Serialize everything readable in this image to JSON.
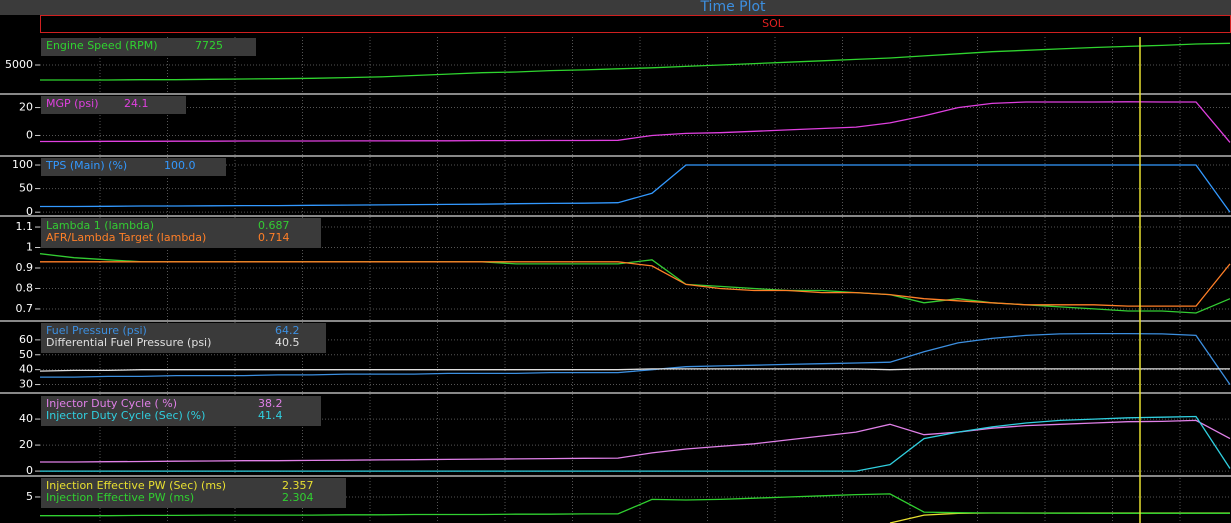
{
  "window_title": "Time Plot",
  "mode_label": "SOL",
  "chart_data": [
    {
      "type": "line",
      "ylim": [
        1000,
        9000
      ],
      "yticks": [
        5000
      ],
      "series": [
        {
          "name": "Engine Speed (RPM)",
          "readout": "7725",
          "color": "#2fd42f",
          "values": [
            2850,
            2850,
            2850,
            2900,
            2900,
            2950,
            3000,
            3050,
            3100,
            3200,
            3300,
            3500,
            3700,
            3900,
            4000,
            4200,
            4300,
            4450,
            4600,
            4800,
            5000,
            5200,
            5400,
            5600,
            5800,
            6000,
            6300,
            6600,
            6900,
            7100,
            7300,
            7500,
            7650,
            7800,
            8000,
            8100
          ]
        }
      ]
    },
    {
      "type": "line",
      "ylim": [
        -14,
        29
      ],
      "yticks": [
        20,
        0
      ],
      "series": [
        {
          "name": "MGP (psi)",
          "readout": "24.1",
          "color": "#e040e0",
          "values": [
            -4.3,
            -4.3,
            -4.2,
            -4.2,
            -4.1,
            -4.1,
            -4,
            -4,
            -4,
            -3.9,
            -3.9,
            -3.8,
            -3.8,
            -3.7,
            -3.7,
            -3.6,
            -3.6,
            -3.5,
            0,
            1.5,
            2,
            3,
            4,
            5,
            6,
            9,
            14,
            20,
            23,
            24,
            24,
            24,
            24.1,
            24,
            24,
            -5
          ]
        }
      ]
    },
    {
      "type": "line",
      "ylim": [
        -6,
        117
      ],
      "yticks": [
        100,
        50,
        0
      ],
      "series": [
        {
          "name": "TPS (Main) (%)",
          "readout": "100.0",
          "color": "#3399ff",
          "values": [
            12,
            12,
            12.5,
            13,
            13,
            13.5,
            14,
            14,
            14.5,
            15,
            15.5,
            16,
            16.5,
            17,
            18,
            18.5,
            19,
            20,
            40,
            100,
            100,
            100,
            100,
            100,
            100,
            100,
            100,
            100,
            100,
            100,
            100,
            100,
            100,
            100,
            100,
            0
          ]
        }
      ]
    },
    {
      "type": "line",
      "ylim": [
        0.646,
        1.149
      ],
      "yticks": [
        1.1,
        1,
        0.9,
        0.8,
        0.7
      ],
      "series": [
        {
          "name": "Lambda 1 (lambda)",
          "readout": "0.687",
          "color": "#33cc33",
          "values": [
            0.97,
            0.95,
            0.94,
            0.93,
            0.93,
            0.93,
            0.93,
            0.93,
            0.93,
            0.93,
            0.93,
            0.93,
            0.93,
            0.93,
            0.92,
            0.92,
            0.92,
            0.92,
            0.94,
            0.82,
            0.81,
            0.8,
            0.79,
            0.79,
            0.78,
            0.77,
            0.73,
            0.75,
            0.73,
            0.72,
            0.71,
            0.7,
            0.69,
            0.69,
            0.68,
            0.75
          ]
        },
        {
          "name": "AFR/Lambda Target (lambda)",
          "readout": "0.714",
          "color": "#ff7f27",
          "values": [
            0.93,
            0.93,
            0.93,
            0.93,
            0.93,
            0.93,
            0.93,
            0.93,
            0.93,
            0.93,
            0.93,
            0.93,
            0.93,
            0.93,
            0.93,
            0.93,
            0.93,
            0.93,
            0.91,
            0.82,
            0.8,
            0.79,
            0.79,
            0.78,
            0.78,
            0.77,
            0.75,
            0.74,
            0.73,
            0.72,
            0.72,
            0.72,
            0.714,
            0.714,
            0.714,
            0.92
          ]
        }
      ]
    },
    {
      "type": "line",
      "ylim": [
        25,
        72
      ],
      "yticks": [
        60,
        50,
        40,
        30
      ],
      "series": [
        {
          "name": "Fuel Pressure (psi)",
          "readout": "64.2",
          "color": "#3c8fe0",
          "values": [
            35,
            35,
            35.5,
            35.5,
            36,
            36,
            36,
            36.5,
            36.5,
            37,
            37,
            37,
            37.5,
            37.5,
            37.5,
            38,
            38,
            38,
            40,
            42,
            42.5,
            43,
            43.5,
            44,
            44.5,
            45,
            52,
            58,
            61,
            63,
            64,
            64.2,
            64.2,
            64,
            63,
            30
          ]
        },
        {
          "name": "Differential Fuel Pressure (psi)",
          "readout": "40.5",
          "color": "#e0e0e0",
          "values": [
            39,
            39.5,
            39.5,
            40,
            40,
            40,
            40,
            40,
            40,
            40,
            40,
            40,
            40,
            40,
            40,
            40,
            40,
            40,
            40.5,
            40.5,
            40.5,
            40.5,
            40.5,
            40.5,
            40.5,
            40,
            40.5,
            40.5,
            40.5,
            40.5,
            40.5,
            40.5,
            40.5,
            40.5,
            40.5,
            40.5
          ]
        }
      ]
    },
    {
      "type": "line",
      "ylim": [
        -3,
        58.5
      ],
      "yticks": [
        40,
        20,
        0
      ],
      "series": [
        {
          "name": "Injector Duty Cycle ( %)",
          "readout": "38.2",
          "color": "#e080e8",
          "values": [
            7,
            7,
            7.2,
            7.4,
            7.6,
            7.8,
            8,
            8,
            8.2,
            8.4,
            8.6,
            8.8,
            9,
            9.2,
            9.4,
            9.6,
            9.8,
            10,
            14,
            17,
            19,
            21,
            24,
            27,
            30,
            36,
            28,
            30,
            33,
            35,
            36,
            37,
            38,
            38.2,
            39,
            25
          ]
        },
        {
          "name": "Injector Duty Cycle (Sec) (%)",
          "readout": "41.4",
          "color": "#30d0e0",
          "values": [
            0,
            0,
            0,
            0,
            0,
            0,
            0,
            0,
            0,
            0,
            0,
            0,
            0,
            0,
            0,
            0,
            0,
            0,
            0,
            0,
            0,
            0,
            0,
            0,
            0,
            5,
            25,
            30,
            34,
            37,
            39,
            40,
            41,
            41.4,
            42,
            2
          ]
        }
      ]
    },
    {
      "type": "line",
      "ylim": [
        0.7,
        8.3
      ],
      "yticks": [
        5
      ],
      "series": [
        {
          "name": "Injection Effective PW (Sec) (ms)",
          "readout": "2.357",
          "color": "#e8e030",
          "values": [
            null,
            null,
            null,
            null,
            null,
            null,
            null,
            null,
            null,
            null,
            null,
            null,
            null,
            null,
            null,
            null,
            null,
            null,
            null,
            null,
            null,
            null,
            null,
            null,
            null,
            0.7,
            2,
            2.3,
            2.36,
            2.36,
            2.36,
            2.36,
            2.36,
            2.36,
            2.36,
            2.35
          ]
        },
        {
          "name": "Injection Effective PW (ms)",
          "readout": "2.304",
          "color": "#30d030",
          "values": [
            1.9,
            1.9,
            1.9,
            1.95,
            1.95,
            2,
            2,
            2,
            2,
            2.05,
            2.05,
            2.1,
            2.1,
            2.1,
            2.15,
            2.15,
            2.2,
            2.2,
            4.6,
            4.5,
            4.6,
            4.8,
            5,
            5.2,
            5.4,
            5.5,
            2.5,
            2.4,
            2.35,
            2.33,
            2.32,
            2.31,
            2.31,
            2.304,
            2.3,
            2.3
          ]
        }
      ]
    }
  ]
}
